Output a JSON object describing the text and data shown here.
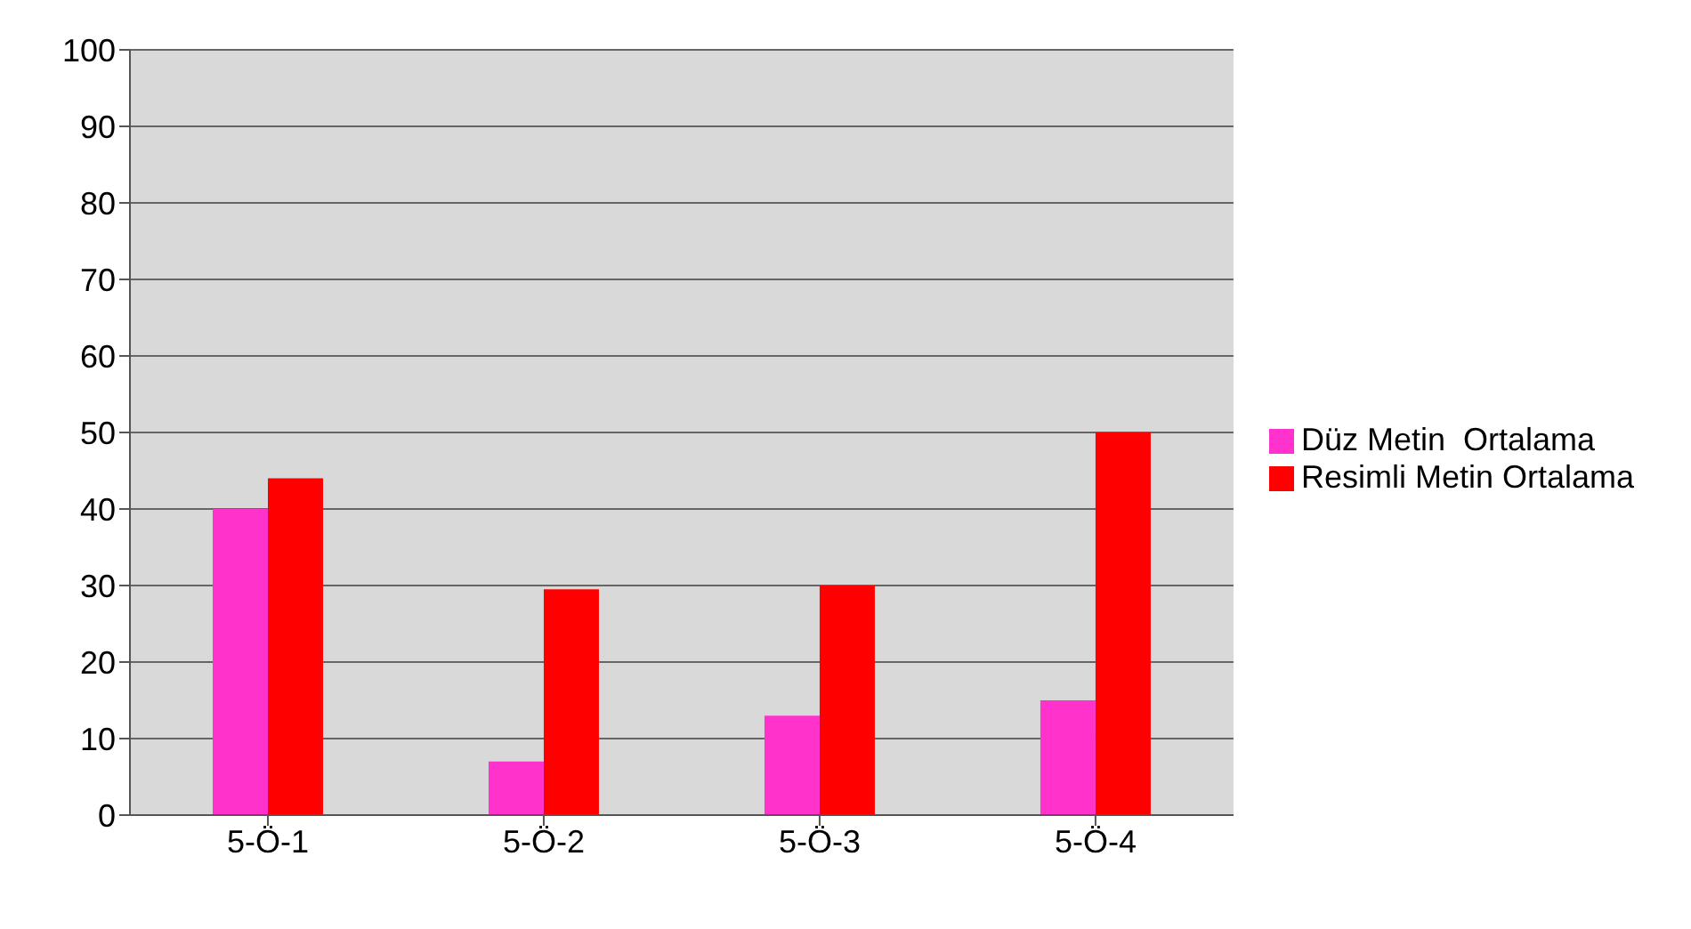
{
  "chart_data": {
    "type": "bar",
    "categories": [
      "5-Ö-1",
      "5-Ö-2",
      "5-Ö-3",
      "5-Ö-4"
    ],
    "series": [
      {
        "name": "Düz Metin  Ortalama",
        "color": "#ff33cc",
        "values": [
          40,
          7,
          13,
          15
        ]
      },
      {
        "name": "Resimli Metin Ortalama",
        "color": "#ff0000",
        "values": [
          44,
          29.5,
          30,
          50
        ]
      }
    ],
    "ylim": [
      0,
      100
    ],
    "yticks": [
      0,
      10,
      20,
      30,
      40,
      50,
      60,
      70,
      80,
      90,
      100
    ],
    "grid": "y",
    "legend": "right"
  }
}
